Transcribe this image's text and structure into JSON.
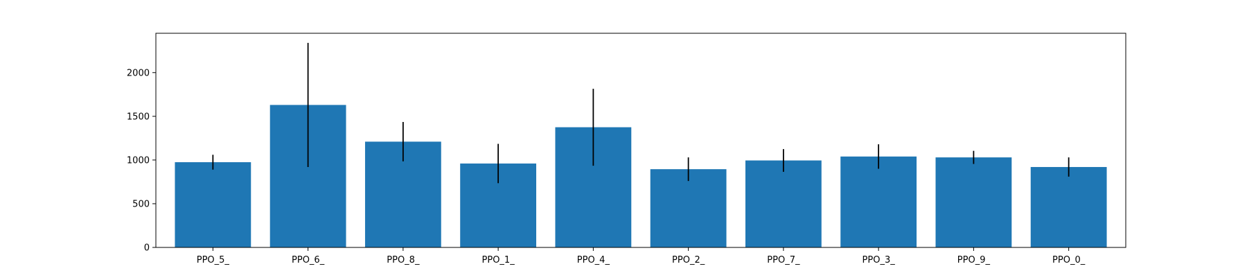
{
  "chart_data": {
    "type": "bar",
    "categories": [
      "PPO_5_",
      "PPO_6_",
      "PPO_8_",
      "PPO_1_",
      "PPO_4_",
      "PPO_2_",
      "PPO_7_",
      "PPO_3_",
      "PPO_9_",
      "PPO_0_"
    ],
    "values": [
      975,
      1630,
      1210,
      960,
      1375,
      895,
      995,
      1040,
      1030,
      920
    ],
    "errors": [
      85,
      710,
      225,
      225,
      440,
      135,
      130,
      140,
      75,
      110
    ],
    "yticks": [
      0,
      500,
      1000,
      1500,
      2000
    ],
    "ylim": [
      0,
      2450
    ],
    "title": "",
    "xlabel": "",
    "ylabel": "",
    "grid": false,
    "colors": {
      "bar": "#1f77b4",
      "error": "#000000",
      "axes": "#000000"
    }
  }
}
